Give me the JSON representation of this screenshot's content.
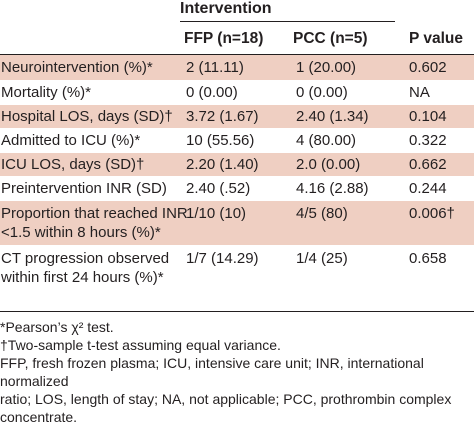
{
  "header": {
    "group_label": "Intervention",
    "col_ffp": "FFP (n=18)",
    "col_pcc": "PCC (n=5)",
    "col_p": "P value"
  },
  "rows": [
    {
      "label": "Neurointervention (%)*",
      "ffp": "2 (11.11)",
      "pcc": "1 (20.00)",
      "p": "0.602",
      "shaded": true
    },
    {
      "label": "Mortality (%)*",
      "ffp": "0 (0.00)",
      "pcc": "0 (0.00)",
      "p": "NA",
      "shaded": false
    },
    {
      "label": "Hospital LOS, days (SD)†",
      "ffp": "3.72 (1.67)",
      "pcc": "2.40 (1.34)",
      "p": "0.104",
      "shaded": true
    },
    {
      "label": "Admitted to ICU (%)*",
      "ffp": "10 (55.56)",
      "pcc": "4 (80.00)",
      "p": "0.322",
      "shaded": false
    },
    {
      "label": "ICU LOS, days (SD)†",
      "ffp": "2.20 (1.40)",
      "pcc": "2.0 (0.00)",
      "p": "0.662",
      "shaded": true
    },
    {
      "label": "Preintervention INR (SD)",
      "ffp": "2.40 (.52)",
      "pcc": "4.16 (2.88)",
      "p": "0.244",
      "shaded": false
    },
    {
      "label_line1": "Proportion that reached INR",
      "label_line2": "<1.5 within 8 hours (%)*",
      "ffp": "1/10 (10)",
      "pcc": "4/5 (80)",
      "p": "0.006†",
      "shaded": true
    },
    {
      "label_line1": "CT progression observed",
      "label_line2": "within first 24 hours (%)*",
      "ffp": "1/7 (14.29)",
      "pcc": "1/4 (25)",
      "p": "0.658",
      "shaded": false
    }
  ],
  "footnotes": {
    "line1": "*Pearson’s χ² test.",
    "line2": "†Two-sample t-test assuming equal variance.",
    "line3": "FFP, fresh frozen plasma; ICU, intensive care unit; INR, international normalized",
    "line4": "ratio; LOS, length of stay; NA, not applicable; PCC, prothrombin complex",
    "line5": "concentrate."
  },
  "colors": {
    "shaded_row": "#efcfc2",
    "text": "#231f20"
  }
}
